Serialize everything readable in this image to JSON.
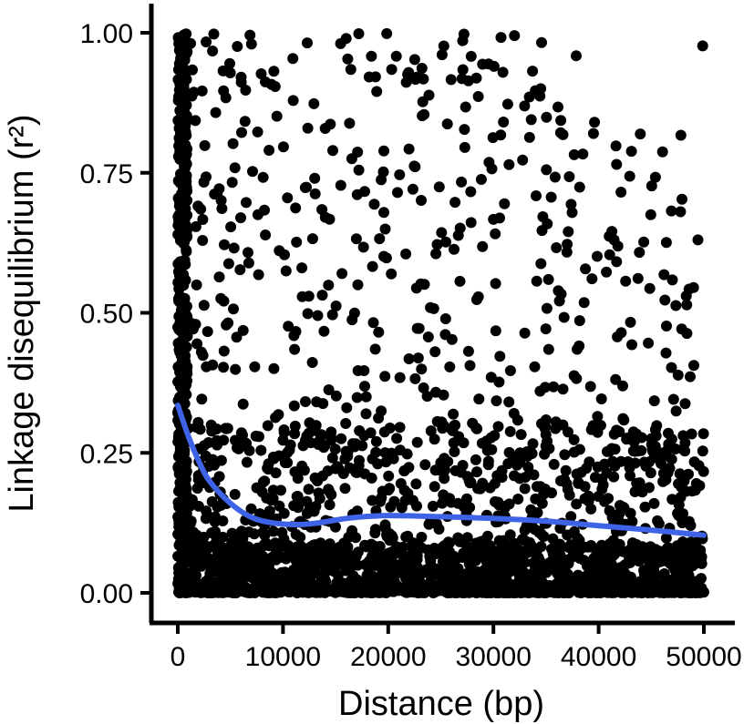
{
  "chart_data": {
    "type": "scatter",
    "title": "",
    "xlabel": "Distance (bp)",
    "ylabel": "Linkage disequilibrium (r²)",
    "xlim": [
      0,
      50000
    ],
    "ylim": [
      0,
      1
    ],
    "x_ticks": [
      0,
      10000,
      20000,
      30000,
      40000,
      50000
    ],
    "y_ticks": [
      0.0,
      0.25,
      0.5,
      0.75,
      1.0
    ],
    "x_tick_labels": [
      "0",
      "10000",
      "20000",
      "30000",
      "40000",
      "50000"
    ],
    "y_tick_labels": [
      "0.00",
      "0.25",
      "0.50",
      "0.75",
      "1.00"
    ],
    "grid": false,
    "legend": "none",
    "point_color": "#000000",
    "smooth_color": "#3f63e6",
    "points_description_count": 2600,
    "smooth_curve": {
      "x": [
        0,
        1000,
        2000,
        3000,
        5000,
        7000,
        9000,
        11000,
        13000,
        15000,
        17000,
        20000,
        25000,
        30000,
        35000,
        40000,
        45000,
        50000
      ],
      "y": [
        0.335,
        0.28,
        0.235,
        0.2,
        0.16,
        0.135,
        0.125,
        0.122,
        0.124,
        0.13,
        0.135,
        0.138,
        0.136,
        0.133,
        0.128,
        0.12,
        0.112,
        0.103
      ]
    }
  }
}
